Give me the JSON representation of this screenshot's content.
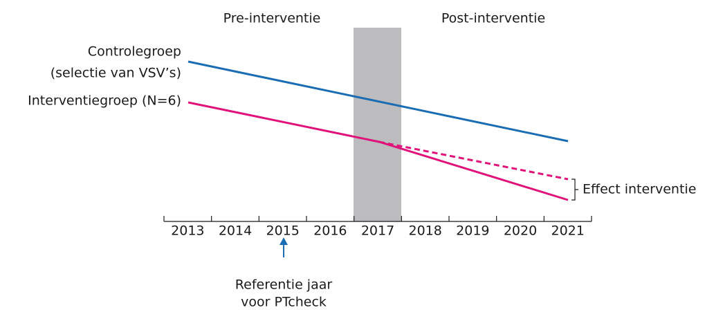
{
  "phases": {
    "pre": "Pre-interventie",
    "post": "Post-interventie"
  },
  "groups": {
    "control_line1": "Controlegroep",
    "control_line2": "(selectie van VSV’s)",
    "intervention": "Interventiegroep (N=6)"
  },
  "effect_label": "Effect interventie",
  "years": [
    "2013",
    "2014",
    "2015",
    "2016",
    "2017",
    "2018",
    "2019",
    "2020",
    "2021"
  ],
  "reference": {
    "line1": "Referentie jaar",
    "line2": "voor PTcheck"
  }
}
